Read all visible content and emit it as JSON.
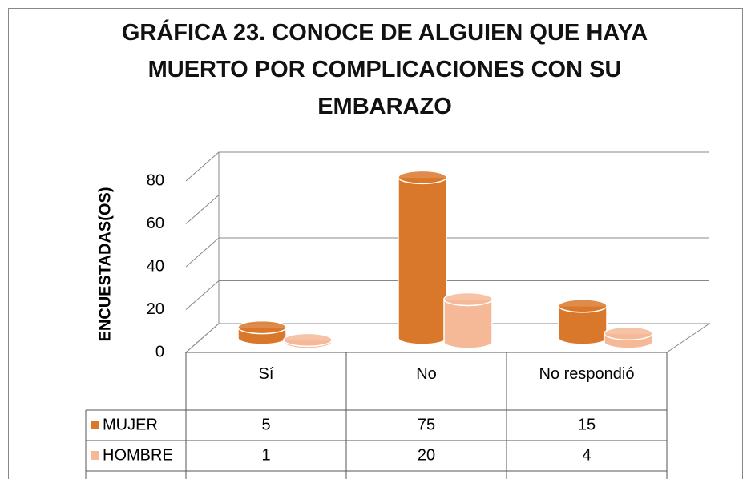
{
  "chart_data": {
    "type": "bar",
    "title": "GRÁFICA 23. CONOCE DE ALGUIEN QUE HAYA MUERTO POR COMPLICACIONES CON SU EMBARAZO",
    "ylabel": "ENCUESTADAS(OS)",
    "categories": [
      "Sí",
      "No",
      "No respondió"
    ],
    "series": [
      {
        "name": "MUJER",
        "color": "#d9772b",
        "values": [
          5,
          75,
          15
        ]
      },
      {
        "name": "HOMBRE",
        "color": "#f5b998",
        "values": [
          1,
          20,
          4
        ]
      }
    ],
    "ylim": [
      0,
      80
    ],
    "yticks": [
      0,
      20,
      40,
      60,
      80
    ],
    "grid": true
  }
}
